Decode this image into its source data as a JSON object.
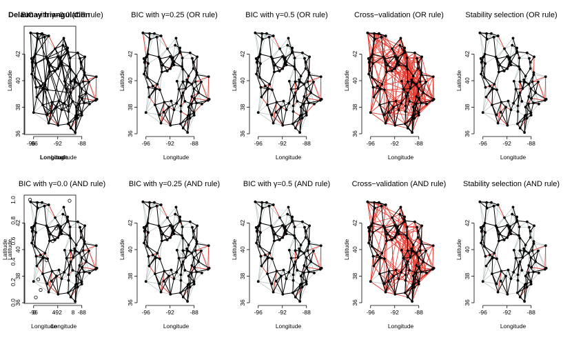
{
  "chart_data": {
    "type": "network-map",
    "xlabel": "Longitude",
    "ylabel": "Latitude",
    "xlim": [
      -97,
      -85
    ],
    "ylim": [
      36,
      44
    ],
    "x_ticks": [
      -96,
      -92,
      -88
    ],
    "y_ticks": [
      36,
      38,
      40,
      42
    ],
    "panels": [
      {
        "title": "BIC with γ=0.0 (OR rule)",
        "overlay_title": "Delaunay triangulation",
        "red_density": 0.18,
        "black_density": 0.9
      },
      {
        "title": "BIC with γ=0.25 (OR rule)",
        "red_density": 0.22,
        "black_density": 0.55
      },
      {
        "title": "BIC with γ=0.5 (OR rule)",
        "red_density": 0.2,
        "black_density": 0.55
      },
      {
        "title": "Cross−validation (OR rule)",
        "red_density": 1.0,
        "black_density": 0.6
      },
      {
        "title": "Stability selection (OR rule)",
        "red_density": 0.15,
        "black_density": 0.45
      },
      {
        "title": "BIC with γ=0.0 (AND rule)",
        "red_density": 0.18,
        "black_density": 0.55
      },
      {
        "title": "BIC with γ=0.25 (AND rule)",
        "red_density": 0.15,
        "black_density": 0.5
      },
      {
        "title": "BIC with γ=0.5 (AND rule)",
        "red_density": 0.12,
        "black_density": 0.5
      },
      {
        "title": "Cross−validation (AND rule)",
        "red_density": 0.8,
        "black_density": 0.6
      },
      {
        "title": "Stability selection (AND rule)",
        "red_density": 0.1,
        "black_density": 0.45
      }
    ],
    "overlay_panel6": {
      "y_ticks": [
        "1.0",
        "0.8",
        "0.6",
        "0.4",
        "0.2",
        "0.0"
      ],
      "y_label": "Latitude",
      "x_ticks": [
        "0",
        "4",
        "8"
      ],
      "x_label": "Longitude"
    },
    "overlay_panel1": {
      "x_label": "Longitude"
    }
  },
  "colors": {
    "grey_edge": "#b9c4c4",
    "red_edge": "#e8392f",
    "black_edge": "#000000",
    "node": "#000000"
  }
}
